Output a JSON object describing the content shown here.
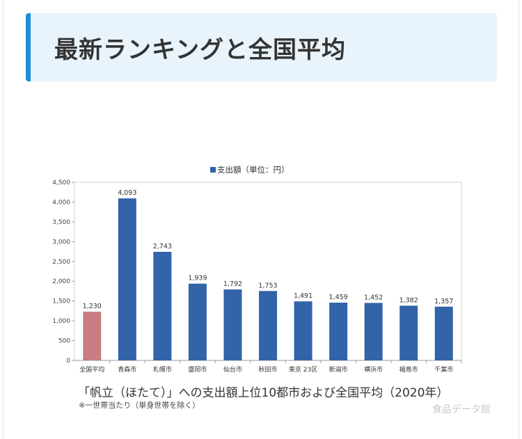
{
  "heading": {
    "title": "最新ランキングと全国平均"
  },
  "chart_data": {
    "type": "bar",
    "legend": "支出額（単位：円）",
    "legend_position": "top",
    "categories": [
      "全国平均",
      "青森市",
      "札幌市",
      "盛岡市",
      "仙台市",
      "秋田市",
      "東京 23区",
      "新潟市",
      "横浜市",
      "福島市",
      "千葉市"
    ],
    "values": [
      1230,
      4093,
      2743,
      1939,
      1792,
      1753,
      1491,
      1459,
      1452,
      1382,
      1357
    ],
    "value_labels": [
      "1,230",
      "4,093",
      "2,743",
      "1,939",
      "1,792",
      "1,753",
      "1,491",
      "1,459",
      "1,452",
      "1,382",
      "1,357"
    ],
    "yticks": [
      "0",
      "500",
      "1,000",
      "1,500",
      "2,000",
      "2,500",
      "3,000",
      "3,500",
      "4,000",
      "4,500"
    ],
    "ylim": [
      0,
      4500
    ],
    "grid": false,
    "colors": {
      "series": "#3363a8",
      "highlight": "#c97c82"
    },
    "title": "「帆立（ほたて）」への支出額上位10都市および全国平均（2020年）",
    "note": "※一世帯当たり（単身世帯を除く）",
    "source": "食品データ館"
  }
}
